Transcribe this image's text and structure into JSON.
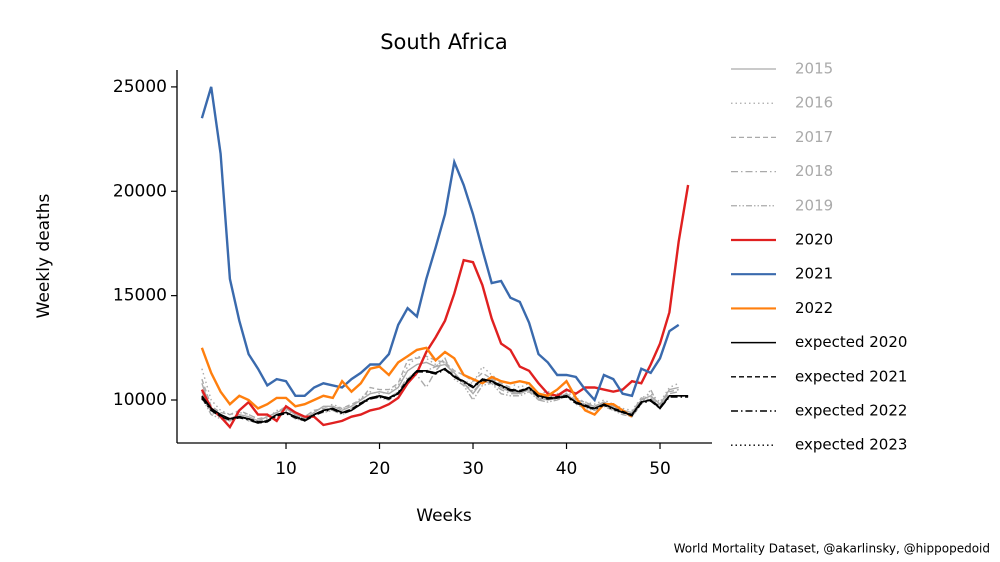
{
  "chart_data": {
    "type": "line",
    "title": "South Africa",
    "xlabel": "Weeks",
    "ylabel": "Weekly deaths",
    "source": "World Mortality Dataset, @akarlinsky, @hippopedoid",
    "legend": "right",
    "x": [
      1,
      2,
      3,
      4,
      5,
      6,
      7,
      8,
      9,
      10,
      11,
      12,
      13,
      14,
      15,
      16,
      17,
      18,
      19,
      20,
      21,
      22,
      23,
      24,
      25,
      26,
      27,
      28,
      29,
      30,
      31,
      32,
      33,
      34,
      35,
      36,
      37,
      38,
      39,
      40,
      41,
      42,
      43,
      44,
      45,
      46,
      47,
      48,
      49,
      50,
      51,
      52,
      53
    ],
    "xlim": [
      -1.66,
      55.56
    ],
    "xticks": [
      10,
      20,
      30,
      40,
      50
    ],
    "ylim": [
      7940,
      25810
    ],
    "yticks": [
      10000,
      15000,
      20000,
      25000
    ],
    "series": [
      {
        "name": "2015",
        "color": "#aaaaaa",
        "dash": "solid",
        "values": [
          10800,
          9500,
          9200,
          9000,
          9300,
          9200,
          9000,
          9200,
          9400,
          9600,
          9300,
          9100,
          9400,
          9700,
          9700,
          9500,
          9700,
          10000,
          10300,
          10400,
          10300,
          10600,
          11400,
          11700,
          11800,
          11600,
          11700,
          11300,
          10800,
          10300,
          10900,
          11000,
          10600,
          10400,
          10300,
          10500,
          10100,
          10000,
          10100,
          10300,
          9900,
          9800,
          9700,
          9900,
          9700,
          9500,
          9400,
          10000,
          10200,
          9800,
          10500,
          10600,
          null
        ]
      },
      {
        "name": "2016",
        "color": "#aaaaaa",
        "dash": "dotted",
        "values": [
          11500,
          10000,
          9500,
          9300,
          9400,
          9300,
          9100,
          9100,
          9500,
          9500,
          9300,
          9200,
          9500,
          9600,
          9800,
          9600,
          9700,
          10100,
          10400,
          10300,
          10400,
          10700,
          11600,
          12100,
          12000,
          11700,
          11800,
          11200,
          10900,
          10800,
          11600,
          11200,
          10900,
          10800,
          10600,
          10800,
          10300,
          10400,
          10300,
          10400,
          10100,
          9900,
          9800,
          10000,
          9800,
          9600,
          9500,
          10100,
          10300,
          9900,
          10600,
          10800,
          null
        ]
      },
      {
        "name": "2017",
        "color": "#aaaaaa",
        "dash": "dashed",
        "values": [
          11000,
          9700,
          9400,
          9300,
          9500,
          9300,
          9100,
          9200,
          9400,
          9700,
          9400,
          9200,
          9500,
          9600,
          9700,
          9600,
          9800,
          10000,
          10600,
          10500,
          10500,
          10800,
          11900,
          12000,
          12100,
          11900,
          11800,
          11400,
          11200,
          10900,
          11300,
          11000,
          10800,
          10600,
          10400,
          10600,
          10300,
          10200,
          10200,
          10300,
          10000,
          9900,
          9700,
          9900,
          9700,
          9500,
          9400,
          10100,
          10000,
          9700,
          10400,
          10500,
          null
        ]
      },
      {
        "name": "2018",
        "color": "#aaaaaa",
        "dash": "dashdot",
        "values": [
          10400,
          9400,
          9200,
          9100,
          9300,
          9000,
          8900,
          9100,
          9300,
          9400,
          9200,
          9000,
          9300,
          9500,
          9500,
          9400,
          9600,
          9900,
          10100,
          10200,
          10100,
          10400,
          11100,
          11200,
          10600,
          11400,
          11900,
          11100,
          10800,
          10400,
          10900,
          10800,
          10500,
          10300,
          10300,
          10500,
          10000,
          10100,
          10000,
          10200,
          9900,
          9700,
          9600,
          9800,
          9600,
          9400,
          9300,
          9900,
          10100,
          9700,
          10300,
          10400,
          null
        ]
      },
      {
        "name": "2019",
        "color": "#aaaaaa",
        "dash": "dashdotdot",
        "values": [
          10100,
          9300,
          9100,
          9000,
          9200,
          9100,
          8900,
          9000,
          9200,
          9400,
          9100,
          9000,
          9300,
          9400,
          9500,
          9300,
          9500,
          9800,
          10100,
          10100,
          10000,
          10300,
          11000,
          11400,
          11400,
          11600,
          12000,
          11000,
          10700,
          10000,
          10700,
          10800,
          10300,
          10200,
          10200,
          10400,
          10000,
          9900,
          10000,
          10200,
          9800,
          9600,
          9500,
          9700,
          9500,
          9300,
          9200,
          9800,
          10500,
          9600,
          10200,
          10200,
          null
        ]
      },
      {
        "name": "2020",
        "color": "#e02020",
        "dash": "solid",
        "values": [
          10500,
          9600,
          9200,
          8700,
          9500,
          9900,
          9300,
          9300,
          9000,
          9700,
          9400,
          9200,
          9200,
          8800,
          8900,
          9000,
          9200,
          9300,
          9500,
          9600,
          9800,
          10100,
          10800,
          11300,
          12300,
          13000,
          13800,
          15100,
          16700,
          16600,
          15500,
          13900,
          12700,
          12400,
          11600,
          11400,
          10800,
          10300,
          10200,
          10500,
          10300,
          10600,
          10600,
          10500,
          10400,
          10500,
          10900,
          10800,
          11700,
          12700,
          14200,
          17600,
          20300
        ]
      },
      {
        "name": "2021",
        "color": "#3a6aad",
        "dash": "solid",
        "values": [
          23500,
          25000,
          21800,
          15800,
          13800,
          12200,
          11500,
          10700,
          11000,
          10900,
          10200,
          10200,
          10600,
          10800,
          10700,
          10600,
          11000,
          11300,
          11700,
          11700,
          12200,
          13600,
          14400,
          14000,
          15800,
          17300,
          18900,
          21400,
          20300,
          18900,
          17200,
          15600,
          15700,
          14900,
          14700,
          13700,
          12200,
          11800,
          11200,
          11200,
          11100,
          10500,
          10000,
          11200,
          11000,
          10300,
          10200,
          11500,
          11300,
          12000,
          13300,
          13600,
          null
        ]
      },
      {
        "name": "2022",
        "color": "#ff7f0e",
        "dash": "solid",
        "values": [
          12500,
          11300,
          10400,
          9800,
          10200,
          10000,
          9600,
          9800,
          10100,
          10100,
          9700,
          9800,
          10000,
          10200,
          10100,
          10900,
          10400,
          10800,
          11500,
          11600,
          11200,
          11800,
          12100,
          12400,
          12500,
          11900,
          12300,
          12000,
          11200,
          11000,
          10800,
          11100,
          10900,
          10800,
          10900,
          10800,
          10300,
          10200,
          10500,
          10900,
          10100,
          9500,
          9300,
          9800,
          9800,
          9500,
          9200,
          null,
          null,
          null,
          null,
          null,
          null
        ]
      },
      {
        "name": "expected 2020",
        "color": "#000000",
        "dash": "solid",
        "values": [
          10200,
          9600,
          9300,
          9100,
          9200,
          9100,
          8900,
          9000,
          9300,
          9400,
          9200,
          9000,
          9300,
          9500,
          9600,
          9400,
          9500,
          9800,
          10100,
          10200,
          10100,
          10300,
          10900,
          11400,
          11400,
          11300,
          11500,
          11100,
          10900,
          10600,
          11000,
          10900,
          10700,
          10500,
          10400,
          10600,
          10200,
          10100,
          10100,
          10200,
          9900,
          9700,
          9600,
          9800,
          9600,
          9400,
          9300,
          9900,
          10000,
          9600,
          10200,
          10200,
          10200
        ]
      },
      {
        "name": "expected 2021",
        "color": "#000000",
        "dash": "dashed",
        "values": [
          10150,
          9550,
          9250,
          9100,
          9200,
          9100,
          8950,
          9000,
          9300,
          9400,
          9200,
          9050,
          9300,
          9500,
          9600,
          9400,
          9550,
          9850,
          10100,
          10150,
          10100,
          10350,
          10950,
          11400,
          11350,
          11300,
          11500,
          11150,
          10900,
          10650,
          11000,
          10900,
          10700,
          10500,
          10450,
          10600,
          10200,
          10100,
          10150,
          10200,
          9900,
          9750,
          9600,
          9800,
          9600,
          9450,
          9300,
          9900,
          10000,
          9650,
          10200,
          10200,
          10200
        ]
      },
      {
        "name": "expected 2022",
        "color": "#000000",
        "dash": "dashdot",
        "values": [
          10100,
          9500,
          9200,
          9050,
          9150,
          9050,
          8900,
          8950,
          9250,
          9350,
          9150,
          9000,
          9250,
          9450,
          9550,
          9350,
          9500,
          9800,
          10050,
          10150,
          10050,
          10300,
          10900,
          11350,
          11350,
          11250,
          11450,
          11100,
          10850,
          10600,
          10950,
          10850,
          10650,
          10450,
          10400,
          10550,
          10150,
          10050,
          10100,
          10150,
          9850,
          9700,
          9550,
          9750,
          9550,
          9400,
          9250,
          9850,
          9950,
          9600,
          10150,
          10150,
          10150
        ]
      },
      {
        "name": "expected 2023",
        "color": "#000000",
        "dash": "dotted",
        "values": [
          10050,
          9500,
          9250,
          9100,
          9200,
          9100,
          8950,
          9000,
          9300,
          9400,
          9200,
          9050,
          9300,
          9500,
          9600,
          9400,
          9550,
          9850,
          10100,
          10200,
          10100,
          10300,
          10900,
          11400,
          11400,
          11300,
          11500,
          11100,
          10900,
          10600,
          11000,
          10900,
          10700,
          10500,
          10400,
          10600,
          10200,
          10100,
          10100,
          10200,
          9900,
          9700,
          9600,
          9800,
          9600,
          9400,
          9300,
          9900,
          10000,
          9600,
          10200,
          10200,
          10200
        ]
      }
    ]
  }
}
